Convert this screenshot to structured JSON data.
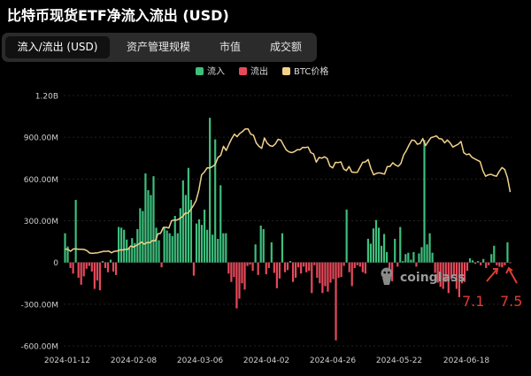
{
  "title": "比特币现货ETF净流入流出 (USD)",
  "tabs": [
    {
      "label": "流入/流出 (USD)",
      "active": true
    },
    {
      "label": "资产管理规模",
      "active": false
    },
    {
      "label": "市值",
      "active": false
    },
    {
      "label": "成交额",
      "active": false
    }
  ],
  "watermark": "coinglass",
  "annotations": [
    "7.1",
    "7.5"
  ],
  "colors": {
    "inflow": "#3dbf7d",
    "outflow": "#e8495a",
    "btc": "#f2d28b",
    "annotation": "#e23b2f"
  },
  "chart_data": {
    "type": "bar",
    "legend": [
      {
        "name": "流入",
        "color": "#3dbf7d"
      },
      {
        "name": "流出",
        "color": "#e8495a"
      },
      {
        "name": "BTC价格",
        "color": "#f2d28b"
      }
    ],
    "legend_position": "top-right",
    "ylim": [
      -600000000,
      1200000000
    ],
    "y_ticks": [
      {
        "value": 1200000000,
        "label": "1.20B"
      },
      {
        "value": 900000000,
        "label": "900.00M"
      },
      {
        "value": 600000000,
        "label": "600.00M"
      },
      {
        "value": 300000000,
        "label": "300.00M"
      },
      {
        "value": 0,
        "label": "0"
      },
      {
        "value": -300000000,
        "label": "-300.00M"
      },
      {
        "value": -600000000,
        "label": "-600.00M"
      }
    ],
    "x_ticks": [
      "2024-01-12",
      "2024-02-08",
      "2024-03-06",
      "2024-04-02",
      "2024-04-26",
      "2024-05-22",
      "2024-06-18"
    ],
    "grid": true,
    "series": [
      {
        "name": "流入/流出",
        "values": [
          210,
          115,
          -40,
          -80,
          450,
          -110,
          -160,
          -100,
          -45,
          -25,
          -65,
          -190,
          -130,
          -200,
          10,
          -40,
          -70,
          20,
          -65,
          -90,
          255,
          250,
          235,
          165,
          105,
          175,
          140,
          240,
          390,
          370,
          640,
          520,
          485,
          620,
          250,
          160,
          -35,
          250,
          230,
          210,
          190,
          335,
          210,
          390,
          590,
          485,
          680,
          450,
          -95,
          280,
          310,
          270,
          380,
          235,
          1040,
          200,
          885,
          170,
          555,
          210,
          210,
          -80,
          -140,
          -105,
          -330,
          -260,
          -150,
          -195,
          -25,
          -15,
          -60,
          130,
          -90,
          265,
          240,
          -85,
          -40,
          145,
          -75,
          -185,
          -115,
          210,
          -70,
          -55,
          10,
          -140,
          -110,
          -35,
          -80,
          -30,
          -70,
          -60,
          -220,
          -20,
          -110,
          -150,
          -220,
          -170,
          -210,
          -145,
          -120,
          -560,
          -110,
          -105,
          -25,
          380,
          -70,
          -170,
          -40,
          -20,
          -30,
          -70,
          -80,
          170,
          135,
          245,
          305,
          250,
          120,
          205,
          75,
          -100,
          -135,
          170,
          -30,
          255,
          10,
          60,
          70,
          20,
          75,
          -30,
          65,
          110,
          880,
          130,
          210,
          70,
          -75,
          -145,
          -175,
          -190,
          -140,
          -220,
          -120,
          -100,
          -190,
          -250,
          -150,
          -140,
          -60,
          30,
          15,
          -10,
          10,
          -20,
          25,
          -40,
          -20,
          60,
          120,
          -20,
          -30,
          -35,
          -20,
          145,
          -5
        ]
      },
      {
        "name": "BTC价格",
        "values": [
          96,
          96,
          80,
          97,
          97,
          95,
          95,
          93,
          85,
          68,
          65,
          68,
          70,
          75,
          80,
          80,
          82,
          70,
          80,
          82,
          90,
          90,
          94,
          94,
          118,
          111,
          121,
          132,
          147,
          132,
          142,
          142,
          157,
          155,
          205,
          210,
          252,
          252,
          248,
          300,
          305,
          305,
          315,
          330,
          355,
          355,
          380,
          410,
          445,
          520,
          630,
          650,
          680,
          680,
          690,
          705,
          755,
          770,
          835,
          805,
          850,
          890,
          922,
          905,
          928,
          942,
          960,
          960,
          922,
          915,
          860,
          835,
          820,
          895,
          858,
          840,
          835,
          852,
          885,
          880,
          843,
          809,
          795,
          790,
          797,
          810,
          810,
          827,
          826,
          830,
          790,
          780,
          721,
          755,
          750,
          760,
          748,
          693,
          680,
          720,
          718,
          723,
          673,
          660,
          690,
          650,
          647,
          648,
          684,
          720,
          723,
          740,
          675,
          630,
          640,
          645,
          640,
          635,
          690,
          690,
          717,
          700,
          691,
          712,
          773,
          805,
          846,
          880,
          876,
          850,
          855,
          890,
          840,
          870,
          897,
          903,
          910,
          890,
          888,
          860,
          880,
          860,
          830,
          840,
          850,
          870,
          790,
          775,
          780,
          756,
          745,
          735,
          725,
          660,
          620,
          630,
          634,
          625,
          620,
          655,
          682,
          668,
          610,
          506
        ]
      }
    ]
  }
}
